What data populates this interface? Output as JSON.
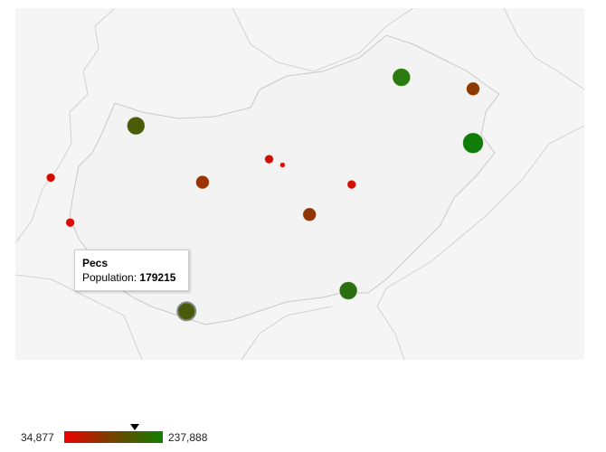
{
  "map": {
    "region": "Hungary",
    "colors": {
      "background": "#f5f5f5",
      "country_fill": "#f2f2f2",
      "border": "#cccccc",
      "min": "#ee0000",
      "max": "#008000"
    },
    "markers": [
      {
        "name": "marker-north-east-1",
        "lon": 20.78,
        "lat": 48.1,
        "size": "large",
        "color": "#2a7a10"
      },
      {
        "name": "marker-north-east-2",
        "lon": 21.63,
        "lat": 48.0,
        "size": "medium",
        "color": "#8c3a00"
      },
      {
        "name": "marker-east-large",
        "lon": 21.63,
        "lat": 47.53,
        "size": "xlarge",
        "color": "#0f7d08"
      },
      {
        "name": "marker-north-west",
        "lon": 17.63,
        "lat": 47.68,
        "size": "large",
        "color": "#4a5c08"
      },
      {
        "name": "marker-budapest-area-1",
        "lon": 19.21,
        "lat": 47.39,
        "size": "small",
        "color": "#cc1100"
      },
      {
        "name": "marker-budapest-area-2",
        "lon": 19.37,
        "lat": 47.34,
        "size": "tiny",
        "color": "#dd0a00"
      },
      {
        "name": "marker-west-1",
        "lon": 16.62,
        "lat": 47.23,
        "size": "small",
        "color": "#d40c00"
      },
      {
        "name": "marker-central-west",
        "lon": 18.42,
        "lat": 47.19,
        "size": "medium",
        "color": "#9a3300"
      },
      {
        "name": "marker-central-east",
        "lon": 20.19,
        "lat": 47.17,
        "size": "small",
        "color": "#d01000"
      },
      {
        "name": "marker-west-2",
        "lon": 16.85,
        "lat": 46.84,
        "size": "small",
        "color": "#dd0a00"
      },
      {
        "name": "marker-central-south",
        "lon": 19.69,
        "lat": 46.91,
        "size": "medium",
        "color": "#923600"
      },
      {
        "name": "marker-szeged",
        "lon": 20.15,
        "lat": 46.25,
        "size": "large",
        "color": "#2c6f10"
      },
      {
        "name": "marker-pecs",
        "lon": 18.23,
        "lat": 46.07,
        "size": "large",
        "color": "#4b5a0a",
        "highlighted": true
      }
    ]
  },
  "tooltip": {
    "title": "Pecs",
    "label": "Population: ",
    "value": "179215"
  },
  "legend": {
    "min": "34,877",
    "max": "237,888",
    "marker_value": 179215,
    "min_value": 34877,
    "max_value": 237888
  }
}
